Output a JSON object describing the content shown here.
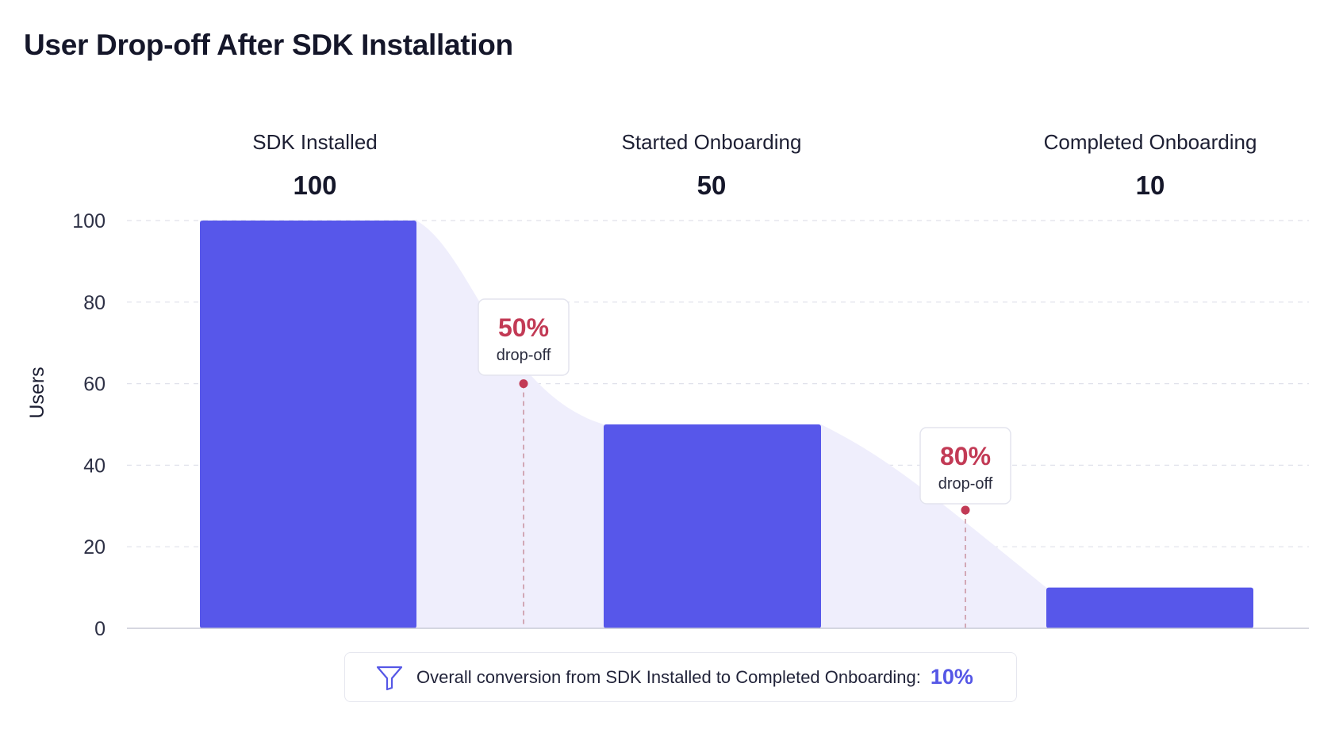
{
  "title": "User Drop-off After SDK Installation",
  "chart_data": {
    "type": "bar",
    "title": "User Drop-off After SDK Installation",
    "ylabel": "Users",
    "xlabel": "",
    "ylim": [
      0,
      100
    ],
    "yticks": [
      0,
      20,
      40,
      60,
      80,
      100
    ],
    "grid": true,
    "categories": [
      "SDK Installed",
      "Started Onboarding",
      "Completed Onboarding"
    ],
    "values": [
      100,
      50,
      10
    ],
    "value_labels": [
      "100",
      "50",
      "10"
    ],
    "dropoffs": [
      {
        "percent": "50%",
        "label": "drop-off",
        "marker_y": 60
      },
      {
        "percent": "80%",
        "label": "drop-off",
        "marker_y": 29
      }
    ]
  },
  "footer": {
    "icon": "funnel-icon",
    "text": "Overall conversion from SDK Installed to Completed Onboarding:",
    "value": "10%"
  },
  "colors": {
    "bar": "#5757ea",
    "area": "#efeefc",
    "grid": "#e0e1ea",
    "dropoff": "#c23a55",
    "accent": "#5557e6"
  }
}
